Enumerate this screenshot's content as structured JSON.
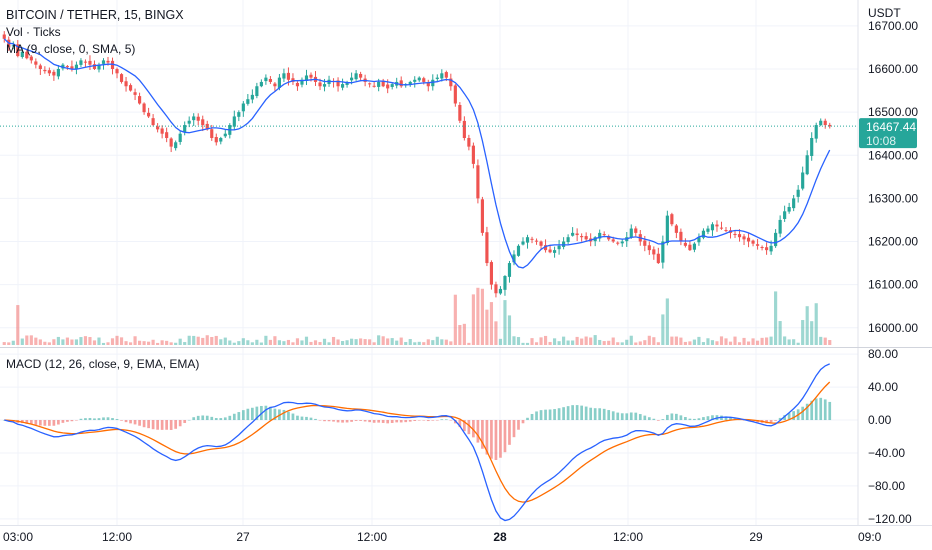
{
  "header": {
    "symbol_title": "BITCOIN / TETHER, 15, BINGX",
    "volume_label": "Vol · Ticks",
    "ma_label": "MA (9, close, 0, SMA, 5)",
    "macd_label": "MACD (12, 26, close, 9, EMA, EMA)"
  },
  "price_axis": {
    "currency": "USDT",
    "ticks": [
      "16700.00",
      "16600.00",
      "16500.00",
      "16400.00",
      "16300.00",
      "16200.00",
      "16100.00",
      "16000.00"
    ],
    "tick_values": [
      16700,
      16600,
      16500,
      16400,
      16300,
      16200,
      16100,
      16000
    ],
    "current_price": "16467.44",
    "countdown": "10:08"
  },
  "macd_axis": {
    "ticks": [
      "80.00",
      "40.00",
      "0.00",
      "−40.00",
      "−80.00",
      "−120.00"
    ],
    "tick_values": [
      80,
      40,
      0,
      -40,
      -80,
      -120
    ]
  },
  "time_axis": {
    "ticks": [
      "03:00",
      "12:00",
      "27",
      "12:00",
      "28",
      "12:00",
      "29",
      "09:0"
    ],
    "bold_index": 4
  },
  "colors": {
    "up": "#26a69a",
    "down": "#ef5350",
    "ma_line": "#2962ff",
    "macd_line": "#2962ff",
    "signal_line": "#ff6d00",
    "price_label_bg": "#26a69a"
  },
  "chart_data": {
    "type": "candlestick",
    "x_label": "time (15-minute candles)",
    "price_range": [
      15960,
      16760
    ],
    "macd_range": [
      -125,
      85
    ],
    "close_series": [
      16670,
      16650,
      16655,
      16630,
      16640,
      16625,
      16620,
      16610,
      16600,
      16595,
      16590,
      16585,
      16600,
      16610,
      16605,
      16600,
      16610,
      16620,
      16615,
      16610,
      16600,
      16610,
      16620,
      16615,
      16600,
      16590,
      16570,
      16560,
      16550,
      16540,
      16520,
      16500,
      16490,
      16470,
      16460,
      16450,
      16440,
      16420,
      16430,
      16450,
      16470,
      16480,
      16490,
      16480,
      16470,
      16460,
      16440,
      16430,
      16440,
      16450,
      16470,
      16490,
      16500,
      16520,
      16530,
      16540,
      16560,
      16570,
      16580,
      16570,
      16560,
      16580,
      16590,
      16575,
      16570,
      16560,
      16575,
      16585,
      16580,
      16570,
      16560,
      16565,
      16575,
      16570,
      16560,
      16565,
      16570,
      16580,
      16590,
      16580,
      16570,
      16565,
      16560,
      16570,
      16560,
      16555,
      16565,
      16570,
      16560,
      16565,
      16570,
      16575,
      16580,
      16570,
      16560,
      16575,
      16580,
      16590,
      16580,
      16560,
      16520,
      16480,
      16440,
      16420,
      16380,
      16300,
      16220,
      16150,
      16100,
      16080,
      16090,
      16120,
      16150,
      16170,
      16190,
      16200,
      16210,
      16205,
      16200,
      16190,
      16180,
      16175,
      16180,
      16190,
      16200,
      16210,
      16220,
      16215,
      16210,
      16205,
      16200,
      16210,
      16220,
      16215,
      16205,
      16200,
      16195,
      16200,
      16210,
      16230,
      16220,
      16200,
      16190,
      16180,
      16170,
      16150,
      16200,
      16260,
      16240,
      16220,
      16200,
      16190,
      16180,
      16195,
      16210,
      16225,
      16230,
      16240,
      16235,
      16230,
      16225,
      16220,
      16215,
      16210,
      16205,
      16200,
      16195,
      16190,
      16185,
      16180,
      16190,
      16220,
      16250,
      16270,
      16280,
      16300,
      16320,
      16360,
      16400,
      16440,
      16470,
      16480,
      16470,
      16467
    ]
  }
}
